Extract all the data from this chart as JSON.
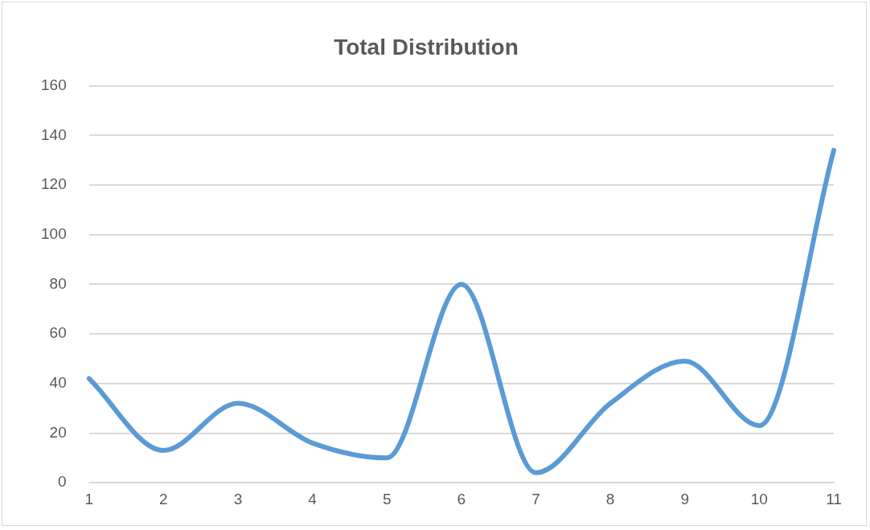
{
  "chart_data": {
    "type": "line",
    "title": "Total Distribution",
    "categories": [
      "1",
      "2",
      "3",
      "4",
      "5",
      "6",
      "7",
      "8",
      "9",
      "10",
      "11"
    ],
    "series": [
      {
        "color": "#5b9bd5",
        "values": [
          42,
          13,
          32,
          16,
          10,
          80,
          4,
          32,
          49,
          23,
          134
        ]
      }
    ],
    "ylim": [
      0,
      160
    ],
    "yticks": [
      0,
      20,
      40,
      60,
      80,
      100,
      120,
      140,
      160
    ],
    "grid": "y",
    "legend": false,
    "marker": "none",
    "line_style": "solid"
  }
}
